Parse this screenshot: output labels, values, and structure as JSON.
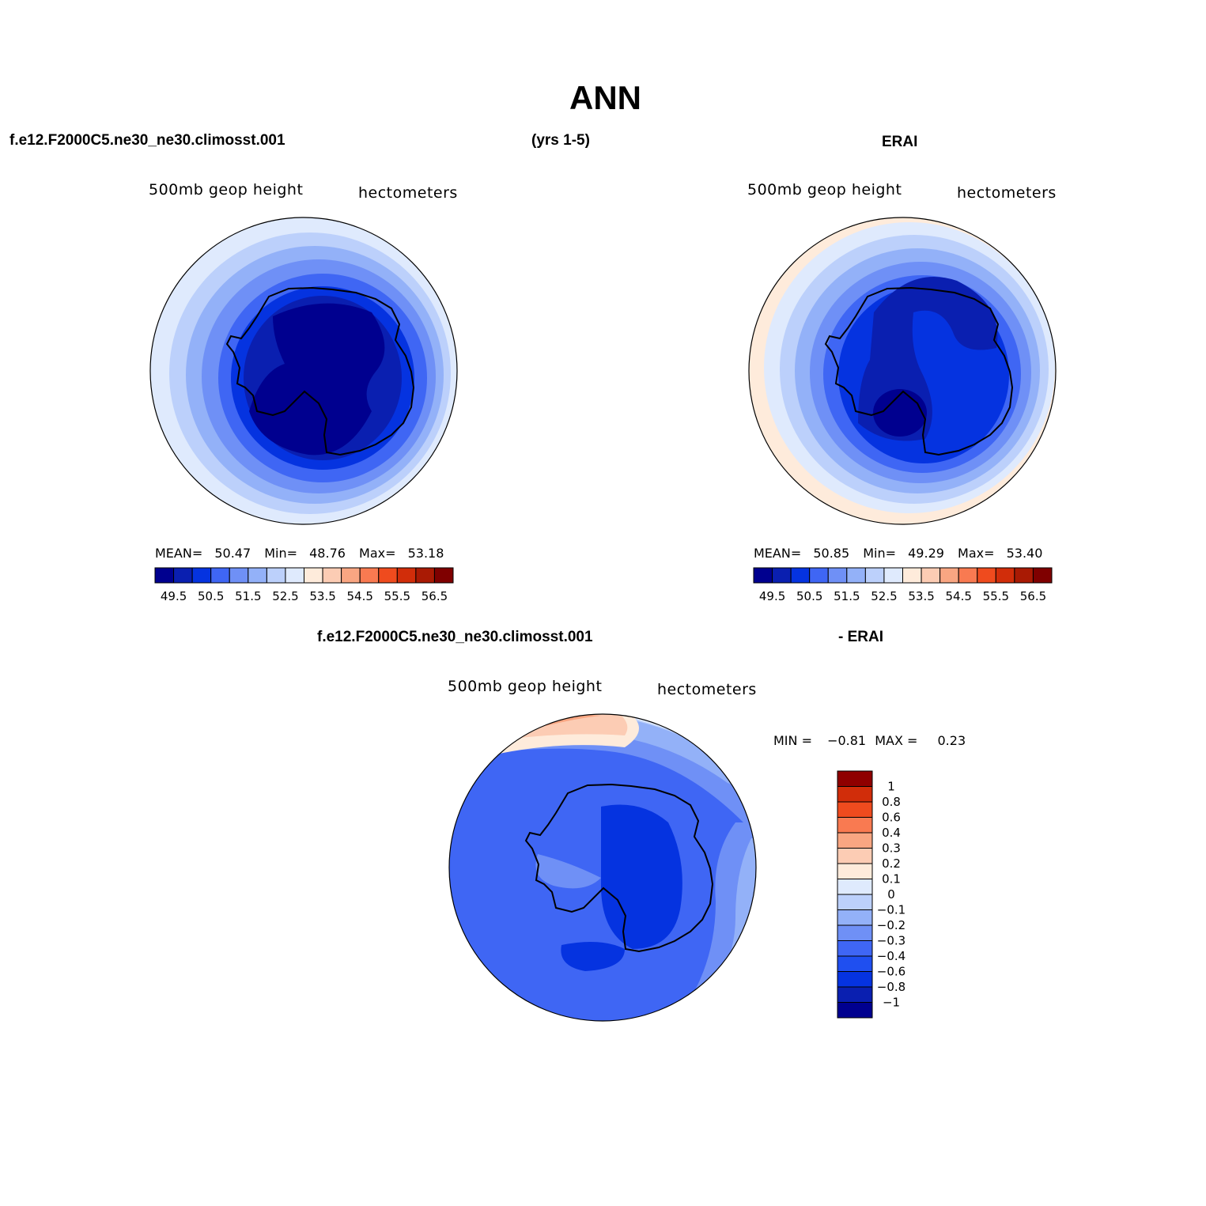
{
  "title": "ANN",
  "header": {
    "case_name": "f.e12.F2000C5.ne30_ne30.climosst.001",
    "years": "(yrs 1-5)",
    "obs_name": "ERAI",
    "diff_case": "f.e12.F2000C5.ne30_ne30.climosst.001",
    "diff_obs": "- ERAI"
  },
  "panels": {
    "model": {
      "left_label": "500mb geop height",
      "right_label": "hectometers",
      "stats": {
        "mean_label": "MEAN=",
        "mean": "50.47",
        "min_label": "Min=",
        "min": "48.76",
        "max_label": "Max=",
        "max": "53.18"
      }
    },
    "obs": {
      "left_label": "500mb geop height",
      "right_label": "hectometers",
      "stats": {
        "mean_label": "MEAN=",
        "mean": "50.85",
        "min_label": "Min=",
        "min": "49.29",
        "max_label": "Max=",
        "max": "53.40"
      }
    },
    "diff": {
      "left_label": "500mb geop height",
      "right_label": "hectometers",
      "stats": {
        "min_label": "MIN =",
        "min": "−0.81",
        "max_label": "MAX =",
        "max": "0.23"
      }
    }
  },
  "colorbar_abs": {
    "colors": [
      "#00008f",
      "#0a1fb0",
      "#0533e0",
      "#3f66f4",
      "#6f90f6",
      "#93b1f8",
      "#bcd0fb",
      "#dfeafd",
      "#feebdb",
      "#fcccb4",
      "#f9a682",
      "#f97a51",
      "#ef4b1e",
      "#d12d0a",
      "#a91a04",
      "#7f0000"
    ],
    "tick_labels": [
      "49.5",
      "50.5",
      "51.5",
      "52.5",
      "53.5",
      "54.5",
      "55.5",
      "56.5"
    ]
  },
  "colorbar_diff": {
    "colors": [
      "#00008f",
      "#0a1fb0",
      "#0533e0",
      "#1f4ff0",
      "#3f66f4",
      "#6f90f6",
      "#93b1f8",
      "#bcd0fb",
      "#dfeafd",
      "#feebdb",
      "#fcccb4",
      "#f9a682",
      "#f97a51",
      "#ef4b1e",
      "#d12d0a",
      "#8f0000"
    ],
    "tick_labels": [
      "−1",
      "−0.8",
      "−0.6",
      "−0.4",
      "−0.3",
      "−0.2",
      "−0.1",
      "0",
      "0.1",
      "0.2",
      "0.3",
      "0.4",
      "0.6",
      "0.8",
      "1"
    ]
  }
}
